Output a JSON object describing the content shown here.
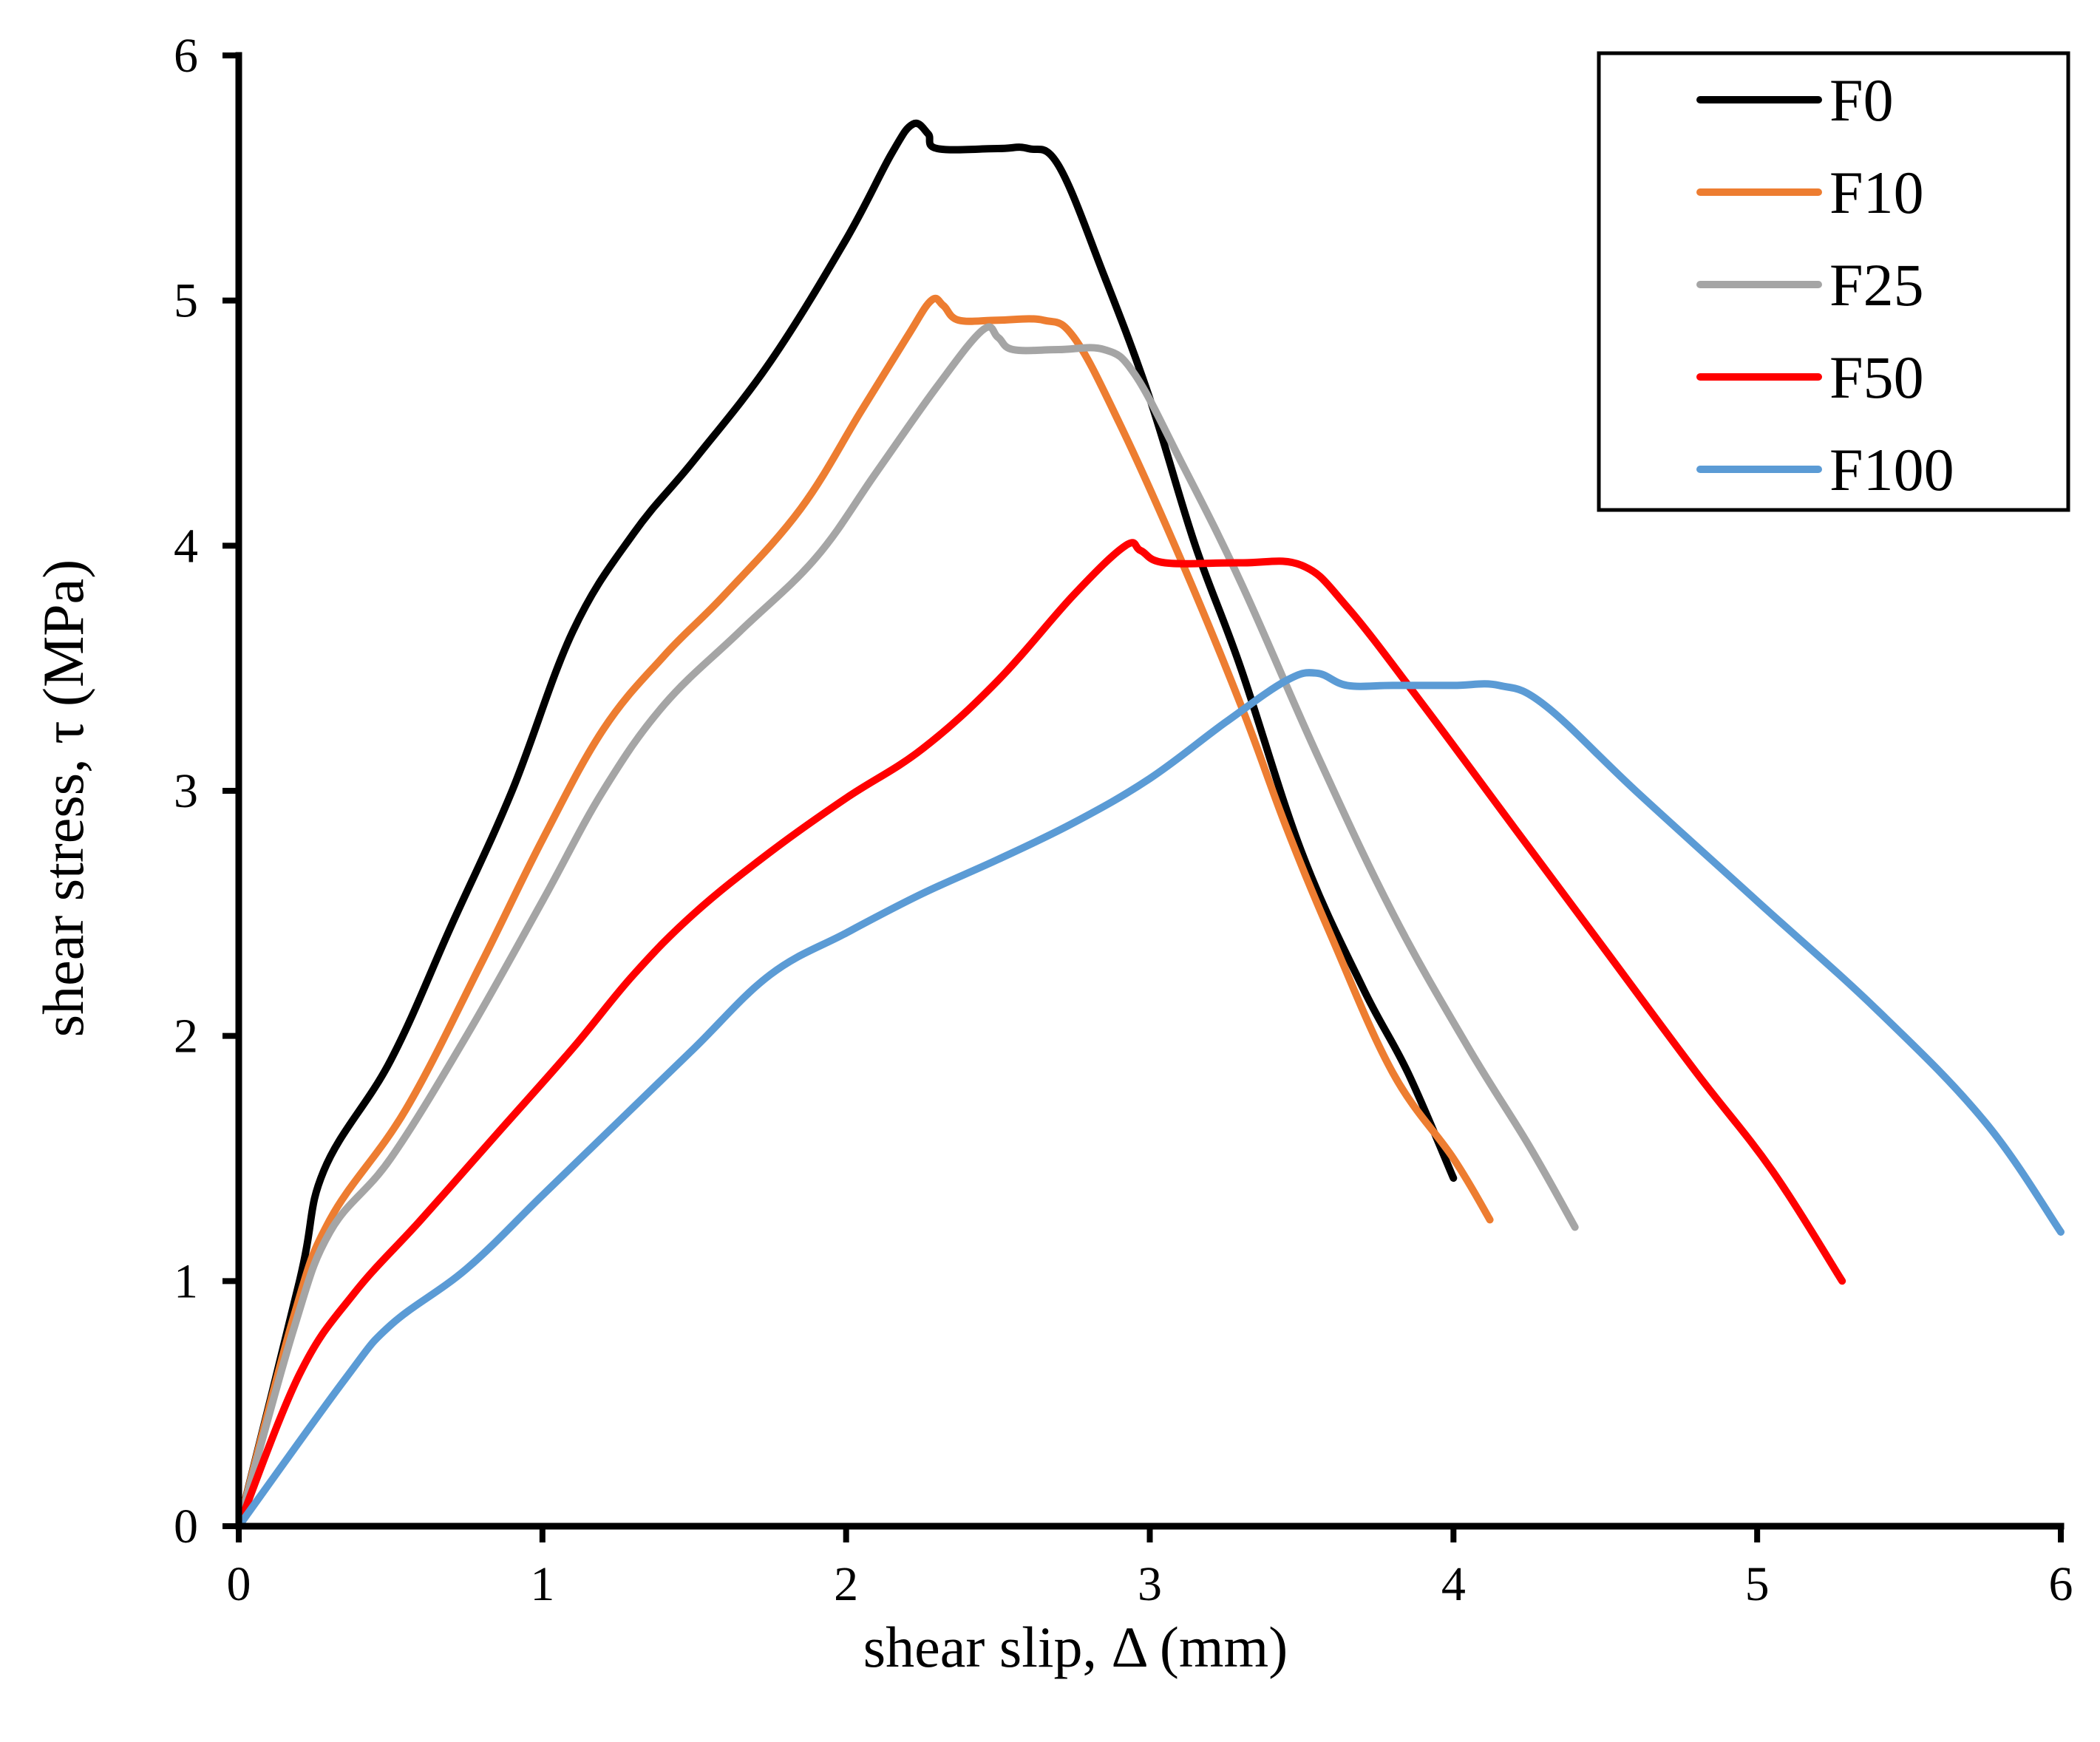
{
  "chart_data": {
    "type": "line",
    "title": "",
    "xlabel": "shear slip, Δ (mm)",
    "ylabel": "shear stress,  τ (MPa)",
    "xlim": [
      0,
      6
    ],
    "ylim": [
      0,
      6
    ],
    "xticks": [
      "0",
      "1",
      "2",
      "3",
      "4",
      "5",
      "6"
    ],
    "yticks": [
      "0",
      "1",
      "2",
      "3",
      "4",
      "5",
      "6"
    ],
    "grid": false,
    "legend_position": "top-right",
    "series": [
      {
        "name": "F0",
        "color": "#000000",
        "points": [
          [
            0,
            0
          ],
          [
            0.2,
            1.0
          ],
          [
            0.28,
            1.45
          ],
          [
            0.5,
            1.9
          ],
          [
            0.7,
            2.45
          ],
          [
            0.9,
            3.0
          ],
          [
            1.1,
            3.65
          ],
          [
            1.3,
            4.05
          ],
          [
            1.5,
            4.35
          ],
          [
            1.75,
            4.75
          ],
          [
            2.0,
            5.25
          ],
          [
            2.15,
            5.6
          ],
          [
            2.22,
            5.72
          ],
          [
            2.27,
            5.68
          ],
          [
            2.3,
            5.62
          ],
          [
            2.5,
            5.62
          ],
          [
            2.6,
            5.62
          ],
          [
            2.7,
            5.55
          ],
          [
            2.85,
            5.1
          ],
          [
            3.0,
            4.6
          ],
          [
            3.15,
            4.0
          ],
          [
            3.3,
            3.5
          ],
          [
            3.5,
            2.75
          ],
          [
            3.7,
            2.2
          ],
          [
            3.85,
            1.85
          ],
          [
            4.0,
            1.42
          ]
        ]
      },
      {
        "name": "F10",
        "color": "#ED7D31",
        "points": [
          [
            0,
            0
          ],
          [
            0.18,
            0.85
          ],
          [
            0.3,
            1.25
          ],
          [
            0.55,
            1.7
          ],
          [
            0.8,
            2.3
          ],
          [
            1.0,
            2.8
          ],
          [
            1.2,
            3.25
          ],
          [
            1.4,
            3.55
          ],
          [
            1.6,
            3.8
          ],
          [
            1.85,
            4.15
          ],
          [
            2.05,
            4.55
          ],
          [
            2.2,
            4.85
          ],
          [
            2.28,
            5.0
          ],
          [
            2.32,
            4.98
          ],
          [
            2.37,
            4.92
          ],
          [
            2.5,
            4.92
          ],
          [
            2.65,
            4.92
          ],
          [
            2.75,
            4.85
          ],
          [
            2.9,
            4.5
          ],
          [
            3.1,
            3.95
          ],
          [
            3.3,
            3.35
          ],
          [
            3.45,
            2.85
          ],
          [
            3.6,
            2.4
          ],
          [
            3.8,
            1.85
          ],
          [
            4.0,
            1.5
          ],
          [
            4.12,
            1.25
          ]
        ]
      },
      {
        "name": "F25",
        "color": "#A5A5A5",
        "points": [
          [
            0,
            0
          ],
          [
            0.18,
            0.8
          ],
          [
            0.3,
            1.2
          ],
          [
            0.5,
            1.5
          ],
          [
            0.75,
            2.0
          ],
          [
            1.0,
            2.55
          ],
          [
            1.2,
            3.0
          ],
          [
            1.4,
            3.35
          ],
          [
            1.65,
            3.65
          ],
          [
            1.9,
            3.95
          ],
          [
            2.1,
            4.3
          ],
          [
            2.3,
            4.65
          ],
          [
            2.45,
            4.88
          ],
          [
            2.5,
            4.85
          ],
          [
            2.55,
            4.8
          ],
          [
            2.7,
            4.8
          ],
          [
            2.85,
            4.8
          ],
          [
            2.95,
            4.7
          ],
          [
            3.1,
            4.35
          ],
          [
            3.3,
            3.85
          ],
          [
            3.55,
            3.15
          ],
          [
            3.8,
            2.5
          ],
          [
            4.05,
            1.95
          ],
          [
            4.25,
            1.55
          ],
          [
            4.4,
            1.22
          ]
        ]
      },
      {
        "name": "F50",
        "color": "#FF0000",
        "points": [
          [
            0,
            0
          ],
          [
            0.2,
            0.62
          ],
          [
            0.38,
            0.95
          ],
          [
            0.6,
            1.25
          ],
          [
            0.85,
            1.6
          ],
          [
            1.1,
            1.95
          ],
          [
            1.3,
            2.25
          ],
          [
            1.5,
            2.5
          ],
          [
            1.75,
            2.75
          ],
          [
            2.0,
            2.97
          ],
          [
            2.25,
            3.17
          ],
          [
            2.5,
            3.45
          ],
          [
            2.75,
            3.8
          ],
          [
            2.92,
            4.0
          ],
          [
            2.97,
            3.98
          ],
          [
            3.05,
            3.93
          ],
          [
            3.3,
            3.93
          ],
          [
            3.5,
            3.92
          ],
          [
            3.65,
            3.75
          ],
          [
            3.9,
            3.35
          ],
          [
            4.2,
            2.85
          ],
          [
            4.5,
            2.35
          ],
          [
            4.8,
            1.85
          ],
          [
            5.05,
            1.45
          ],
          [
            5.28,
            1.0
          ]
        ]
      },
      {
        "name": "F100",
        "color": "#5B9BD5",
        "points": [
          [
            0,
            0
          ],
          [
            0.35,
            0.6
          ],
          [
            0.5,
            0.82
          ],
          [
            0.75,
            1.05
          ],
          [
            1.0,
            1.35
          ],
          [
            1.25,
            1.65
          ],
          [
            1.5,
            1.95
          ],
          [
            1.75,
            2.25
          ],
          [
            2.0,
            2.42
          ],
          [
            2.25,
            2.58
          ],
          [
            2.5,
            2.72
          ],
          [
            2.75,
            2.87
          ],
          [
            3.0,
            3.05
          ],
          [
            3.25,
            3.28
          ],
          [
            3.45,
            3.45
          ],
          [
            3.55,
            3.48
          ],
          [
            3.65,
            3.43
          ],
          [
            3.8,
            3.43
          ],
          [
            4.0,
            3.43
          ],
          [
            4.15,
            3.43
          ],
          [
            4.3,
            3.35
          ],
          [
            4.6,
            3.0
          ],
          [
            5.0,
            2.55
          ],
          [
            5.4,
            2.1
          ],
          [
            5.75,
            1.65
          ],
          [
            6.0,
            1.2
          ]
        ]
      }
    ]
  }
}
